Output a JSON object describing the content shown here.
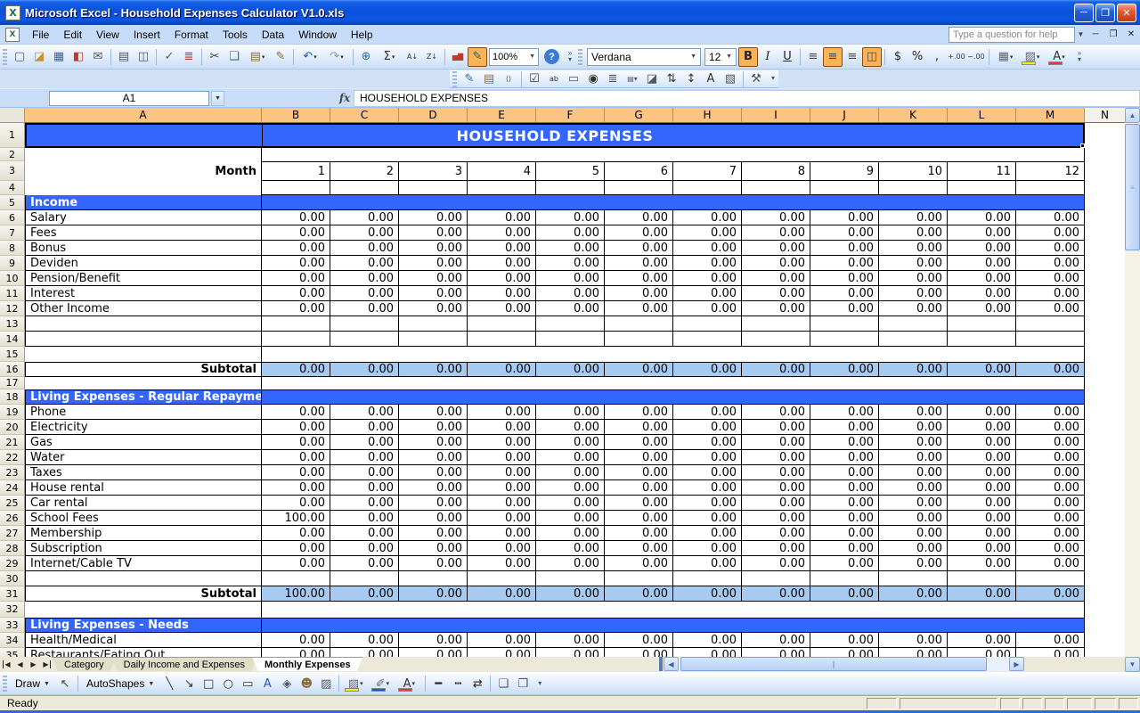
{
  "window": {
    "title": "Microsoft Excel - Household Expenses Calculator V1.0.xls"
  },
  "menu": {
    "items": [
      "File",
      "Edit",
      "View",
      "Insert",
      "Format",
      "Tools",
      "Data",
      "Window",
      "Help"
    ],
    "help_box_placeholder": "Type a question for help"
  },
  "toolbar_standard": {
    "zoom_value": "100%",
    "icons": [
      {
        "name": "new-document",
        "glyph": "▢",
        "color": "#556"
      },
      {
        "name": "open-folder",
        "glyph": "◪",
        "color": "#C89231"
      },
      {
        "name": "save",
        "glyph": "▦",
        "color": "#44628F"
      },
      {
        "name": "permission",
        "glyph": "◧",
        "color": "#C0392B"
      },
      {
        "name": "email",
        "glyph": "✉",
        "color": "#555"
      },
      {
        "sep": true
      },
      {
        "name": "print",
        "glyph": "▤",
        "color": "#556"
      },
      {
        "name": "print-preview",
        "glyph": "◫",
        "color": "#556"
      },
      {
        "sep": true
      },
      {
        "name": "spelling",
        "glyph": "✓",
        "color": "#2E7D32"
      },
      {
        "name": "research",
        "glyph": "≣",
        "color": "#B03A2E"
      },
      {
        "sep": true
      },
      {
        "name": "cut",
        "glyph": "✂",
        "color": "#444"
      },
      {
        "name": "copy",
        "glyph": "❏",
        "color": "#44628F"
      },
      {
        "name": "paste",
        "glyph": "▤",
        "color": "#8A6D3B",
        "drop": true
      },
      {
        "name": "format-painter",
        "glyph": "✎",
        "color": "#8A6D3B"
      },
      {
        "sep": true
      },
      {
        "name": "undo",
        "glyph": "↶",
        "color": "#2255CC",
        "drop": true
      },
      {
        "name": "redo",
        "glyph": "↷",
        "color": "#8899AA",
        "drop": true
      },
      {
        "sep": true
      },
      {
        "name": "insert-hyperlink",
        "glyph": "⊕",
        "color": "#2E6DA4"
      },
      {
        "name": "autosum",
        "glyph": "Σ",
        "color": "#333",
        "drop": true
      },
      {
        "name": "sort-ascending",
        "glyph": "A↓",
        "color": "#334"
      },
      {
        "name": "sort-descending",
        "glyph": "Z↓",
        "color": "#334"
      },
      {
        "sep": true
      },
      {
        "name": "chart-wizard",
        "glyph": "▅▇",
        "color": "#C0392B"
      },
      {
        "name": "drawing",
        "glyph": "✎",
        "color": "#365",
        "active": true
      }
    ]
  },
  "toolbar_formatting": {
    "font_name": "Verdana",
    "font_size": "12",
    "icons": [
      {
        "name": "bold",
        "glyph": "B",
        "color": "#222",
        "active": true
      },
      {
        "name": "italic",
        "glyph": "I",
        "color": "#222"
      },
      {
        "name": "underline",
        "glyph": "U",
        "color": "#222"
      },
      {
        "sep": true
      },
      {
        "name": "align-left",
        "glyph": "≡",
        "color": "#445"
      },
      {
        "name": "align-center",
        "glyph": "≡",
        "color": "#445",
        "active": true
      },
      {
        "name": "align-right",
        "glyph": "≡",
        "color": "#445"
      },
      {
        "name": "merge-and-center",
        "glyph": "◫",
        "color": "#445",
        "active": true
      },
      {
        "sep": true
      },
      {
        "name": "currency",
        "glyph": "$",
        "color": "#222"
      },
      {
        "name": "percent",
        "glyph": "%",
        "color": "#222"
      },
      {
        "name": "comma-style",
        "glyph": ",",
        "color": "#222"
      },
      {
        "name": "increase-decimal",
        "glyph": "+.00",
        "color": "#223A6F"
      },
      {
        "name": "decrease-decimal",
        "glyph": "−.00",
        "color": "#223A6F"
      },
      {
        "sep": true
      },
      {
        "name": "borders",
        "glyph": "▦",
        "color": "#667",
        "drop": true
      },
      {
        "name": "fill-color",
        "glyph": "▨",
        "color": "#667",
        "bar": "#FFF200",
        "drop": true
      },
      {
        "name": "font-color",
        "glyph": "A",
        "color": "#333",
        "bar": "#E53935",
        "drop": true
      }
    ]
  },
  "control_toolbox": {
    "icons": [
      {
        "name": "design-mode",
        "glyph": "✎",
        "color": "#2E6DA4"
      },
      {
        "name": "properties",
        "glyph": "▤",
        "color": "#8A6D3B"
      },
      {
        "name": "view-code",
        "glyph": "⟨⟩",
        "color": "#444"
      },
      {
        "sep": true
      },
      {
        "name": "check-box",
        "glyph": "☑",
        "color": "#333"
      },
      {
        "name": "text-box",
        "glyph": "ab",
        "color": "#333"
      },
      {
        "name": "command-button",
        "glyph": "▭",
        "color": "#556"
      },
      {
        "name": "option-button",
        "glyph": "◉",
        "color": "#333"
      },
      {
        "name": "list-box",
        "glyph": "≣",
        "color": "#556"
      },
      {
        "name": "combo-box",
        "glyph": "▤▾",
        "color": "#556"
      },
      {
        "name": "toggle-button",
        "glyph": "◪",
        "color": "#556"
      },
      {
        "name": "spin-button",
        "glyph": "⇅",
        "color": "#333"
      },
      {
        "name": "scroll-bar",
        "glyph": "↕",
        "color": "#333"
      },
      {
        "name": "label",
        "glyph": "A",
        "color": "#333"
      },
      {
        "name": "image",
        "glyph": "▧",
        "color": "#556"
      },
      {
        "sep": true
      },
      {
        "name": "more-controls",
        "glyph": "⚒",
        "color": "#556"
      }
    ]
  },
  "formula_bar": {
    "name_box": "A1",
    "fx_label": "fx",
    "content": "HOUSEHOLD EXPENSES"
  },
  "sheet": {
    "columns": [
      "A",
      "B",
      "C",
      "D",
      "E",
      "F",
      "G",
      "H",
      "I",
      "J",
      "K",
      "L",
      "M",
      "N"
    ],
    "rows": [
      {
        "n": 1,
        "h": 28,
        "type": "title",
        "label": "HOUSEHOLD EXPENSES"
      },
      {
        "n": 2,
        "h": 15,
        "type": "blank"
      },
      {
        "n": 3,
        "h": 22,
        "type": "month",
        "label": "Month",
        "values": [
          "1",
          "2",
          "3",
          "4",
          "5",
          "6",
          "7",
          "8",
          "9",
          "10",
          "11",
          "12"
        ]
      },
      {
        "n": 4,
        "h": 16,
        "type": "mrow"
      },
      {
        "n": 5,
        "h": 17,
        "type": "section",
        "label": "Income"
      },
      {
        "n": 6,
        "h": 17,
        "type": "item",
        "label": "Salary",
        "values": [
          "0.00",
          "0.00",
          "0.00",
          "0.00",
          "0.00",
          "0.00",
          "0.00",
          "0.00",
          "0.00",
          "0.00",
          "0.00",
          "0.00"
        ]
      },
      {
        "n": 7,
        "h": 17,
        "type": "item",
        "label": "Fees",
        "values": [
          "0.00",
          "0.00",
          "0.00",
          "0.00",
          "0.00",
          "0.00",
          "0.00",
          "0.00",
          "0.00",
          "0.00",
          "0.00",
          "0.00"
        ]
      },
      {
        "n": 8,
        "h": 17,
        "type": "item",
        "label": "Bonus",
        "values": [
          "0.00",
          "0.00",
          "0.00",
          "0.00",
          "0.00",
          "0.00",
          "0.00",
          "0.00",
          "0.00",
          "0.00",
          "0.00",
          "0.00"
        ]
      },
      {
        "n": 9,
        "h": 17,
        "type": "item",
        "label": "Deviden",
        "values": [
          "0.00",
          "0.00",
          "0.00",
          "0.00",
          "0.00",
          "0.00",
          "0.00",
          "0.00",
          "0.00",
          "0.00",
          "0.00",
          "0.00"
        ]
      },
      {
        "n": 10,
        "h": 17,
        "type": "item",
        "label": "Pension/Benefit",
        "values": [
          "0.00",
          "0.00",
          "0.00",
          "0.00",
          "0.00",
          "0.00",
          "0.00",
          "0.00",
          "0.00",
          "0.00",
          "0.00",
          "0.00"
        ]
      },
      {
        "n": 11,
        "h": 17,
        "type": "item",
        "label": "Interest",
        "values": [
          "0.00",
          "0.00",
          "0.00",
          "0.00",
          "0.00",
          "0.00",
          "0.00",
          "0.00",
          "0.00",
          "0.00",
          "0.00",
          "0.00"
        ]
      },
      {
        "n": 12,
        "h": 17,
        "type": "item",
        "label": "Other Income",
        "values": [
          "0.00",
          "0.00",
          "0.00",
          "0.00",
          "0.00",
          "0.00",
          "0.00",
          "0.00",
          "0.00",
          "0.00",
          "0.00",
          "0.00"
        ]
      },
      {
        "n": 13,
        "h": 17,
        "type": "ebrow"
      },
      {
        "n": 14,
        "h": 17,
        "type": "ebrow"
      },
      {
        "n": 15,
        "h": 17,
        "type": "gap"
      },
      {
        "n": 16,
        "h": 17,
        "type": "subtotal",
        "label": "Subtotal",
        "bt": true,
        "values": [
          "0.00",
          "0.00",
          "0.00",
          "0.00",
          "0.00",
          "0.00",
          "0.00",
          "0.00",
          "0.00",
          "0.00",
          "0.00",
          "0.00"
        ]
      },
      {
        "n": 17,
        "h": 14,
        "type": "gap"
      },
      {
        "n": 18,
        "h": 17,
        "type": "section",
        "label": "Living Expenses - Regular Repayment",
        "bt": true
      },
      {
        "n": 19,
        "h": 17,
        "type": "item",
        "label": "Phone",
        "values": [
          "0.00",
          "0.00",
          "0.00",
          "0.00",
          "0.00",
          "0.00",
          "0.00",
          "0.00",
          "0.00",
          "0.00",
          "0.00",
          "0.00"
        ]
      },
      {
        "n": 20,
        "h": 17,
        "type": "item",
        "label": "Electricity",
        "values": [
          "0.00",
          "0.00",
          "0.00",
          "0.00",
          "0.00",
          "0.00",
          "0.00",
          "0.00",
          "0.00",
          "0.00",
          "0.00",
          "0.00"
        ]
      },
      {
        "n": 21,
        "h": 17,
        "type": "item",
        "label": "Gas",
        "values": [
          "0.00",
          "0.00",
          "0.00",
          "0.00",
          "0.00",
          "0.00",
          "0.00",
          "0.00",
          "0.00",
          "0.00",
          "0.00",
          "0.00"
        ]
      },
      {
        "n": 22,
        "h": 17,
        "type": "item",
        "label": "Water",
        "values": [
          "0.00",
          "0.00",
          "0.00",
          "0.00",
          "0.00",
          "0.00",
          "0.00",
          "0.00",
          "0.00",
          "0.00",
          "0.00",
          "0.00"
        ]
      },
      {
        "n": 23,
        "h": 17,
        "type": "item",
        "label": "Taxes",
        "values": [
          "0.00",
          "0.00",
          "0.00",
          "0.00",
          "0.00",
          "0.00",
          "0.00",
          "0.00",
          "0.00",
          "0.00",
          "0.00",
          "0.00"
        ]
      },
      {
        "n": 24,
        "h": 17,
        "type": "item",
        "label": "House rental",
        "values": [
          "0.00",
          "0.00",
          "0.00",
          "0.00",
          "0.00",
          "0.00",
          "0.00",
          "0.00",
          "0.00",
          "0.00",
          "0.00",
          "0.00"
        ]
      },
      {
        "n": 25,
        "h": 17,
        "type": "item",
        "label": "Car rental",
        "values": [
          "0.00",
          "0.00",
          "0.00",
          "0.00",
          "0.00",
          "0.00",
          "0.00",
          "0.00",
          "0.00",
          "0.00",
          "0.00",
          "0.00"
        ]
      },
      {
        "n": 26,
        "h": 17,
        "type": "item",
        "label": "School Fees",
        "values": [
          "100.00",
          "0.00",
          "0.00",
          "0.00",
          "0.00",
          "0.00",
          "0.00",
          "0.00",
          "0.00",
          "0.00",
          "0.00",
          "0.00"
        ]
      },
      {
        "n": 27,
        "h": 17,
        "type": "item",
        "label": "Membership",
        "values": [
          "0.00",
          "0.00",
          "0.00",
          "0.00",
          "0.00",
          "0.00",
          "0.00",
          "0.00",
          "0.00",
          "0.00",
          "0.00",
          "0.00"
        ]
      },
      {
        "n": 28,
        "h": 17,
        "type": "item",
        "label": "Subscription",
        "values": [
          "0.00",
          "0.00",
          "0.00",
          "0.00",
          "0.00",
          "0.00",
          "0.00",
          "0.00",
          "0.00",
          "0.00",
          "0.00",
          "0.00"
        ]
      },
      {
        "n": 29,
        "h": 17,
        "type": "item",
        "label": "Internet/Cable TV",
        "values": [
          "0.00",
          "0.00",
          "0.00",
          "0.00",
          "0.00",
          "0.00",
          "0.00",
          "0.00",
          "0.00",
          "0.00",
          "0.00",
          "0.00"
        ]
      },
      {
        "n": 30,
        "h": 17,
        "type": "ebrow"
      },
      {
        "n": 31,
        "h": 17,
        "type": "subtotal",
        "label": "Subtotal",
        "values": [
          "100.00",
          "0.00",
          "0.00",
          "0.00",
          "0.00",
          "0.00",
          "0.00",
          "0.00",
          "0.00",
          "0.00",
          "0.00",
          "0.00"
        ]
      },
      {
        "n": 32,
        "h": 18,
        "type": "gap"
      },
      {
        "n": 33,
        "h": 17,
        "type": "section",
        "label": "Living Expenses - Needs",
        "bt": true
      },
      {
        "n": 34,
        "h": 17,
        "type": "item",
        "label": "Health/Medical",
        "values": [
          "0.00",
          "0.00",
          "0.00",
          "0.00",
          "0.00",
          "0.00",
          "0.00",
          "0.00",
          "0.00",
          "0.00",
          "0.00",
          "0.00"
        ]
      },
      {
        "n": 35,
        "h": 17,
        "type": "item",
        "label": "Restaurants/Eating Out",
        "values": [
          "0.00",
          "0.00",
          "0.00",
          "0.00",
          "0.00",
          "0.00",
          "0.00",
          "0.00",
          "0.00",
          "0.00",
          "0.00",
          "0.00"
        ]
      }
    ]
  },
  "tabs": {
    "nav_icons": [
      {
        "name": "first-sheet-button",
        "glyph": "◀"
      },
      {
        "name": "previous-sheet-button",
        "glyph": "◀"
      },
      {
        "name": "next-sheet-button",
        "glyph": "▶"
      },
      {
        "name": "last-sheet-button",
        "glyph": "▶"
      }
    ],
    "items": [
      {
        "label": "Category",
        "active": false
      },
      {
        "label": "Daily Income and Expenses",
        "active": false
      },
      {
        "label": "Monthly Expenses",
        "active": true
      }
    ]
  },
  "drawing_toolbar": {
    "draw_label": "Draw",
    "autoshapes_label": "AutoShapes",
    "icons": [
      {
        "name": "line",
        "glyph": "╲",
        "color": "#333"
      },
      {
        "name": "arrow",
        "glyph": "↘",
        "color": "#333"
      },
      {
        "name": "rectangle",
        "glyph": "□",
        "color": "#333"
      },
      {
        "name": "oval",
        "glyph": "○",
        "color": "#333"
      },
      {
        "name": "draw-text-box",
        "glyph": "▭",
        "color": "#333"
      },
      {
        "name": "word-art",
        "glyph": "A",
        "color": "#2255CC"
      },
      {
        "name": "insert-diagram",
        "glyph": "◈",
        "color": "#556"
      },
      {
        "name": "clip-art",
        "glyph": "☻",
        "color": "#8A6D3B"
      },
      {
        "name": "insert-picture",
        "glyph": "▨",
        "color": "#556"
      },
      {
        "sep": true
      },
      {
        "name": "fill-color",
        "glyph": "▨",
        "color": "#667",
        "bar": "#FFF200",
        "drop": true
      },
      {
        "name": "line-color",
        "glyph": "✐",
        "color": "#667",
        "bar": "#2255CC",
        "drop": true
      },
      {
        "name": "font-color",
        "glyph": "A",
        "color": "#333",
        "bar": "#E53935",
        "drop": true
      },
      {
        "sep": true
      },
      {
        "name": "line-style",
        "glyph": "━",
        "color": "#222"
      },
      {
        "name": "dash-style",
        "glyph": "┅",
        "color": "#222"
      },
      {
        "name": "arrow-style",
        "glyph": "⇄",
        "color": "#222"
      },
      {
        "sep": true
      },
      {
        "name": "shadow-style",
        "glyph": "❏",
        "color": "#556"
      },
      {
        "name": "3d-style",
        "glyph": "❒",
        "color": "#556"
      }
    ]
  },
  "status_bar": {
    "text": "Ready"
  },
  "colors": {
    "header_orange": "#FAC482",
    "section_blue": "#3366FF",
    "subtotal_blue": "#A6CAF0",
    "titlebar_blue": "#0A50DC"
  }
}
